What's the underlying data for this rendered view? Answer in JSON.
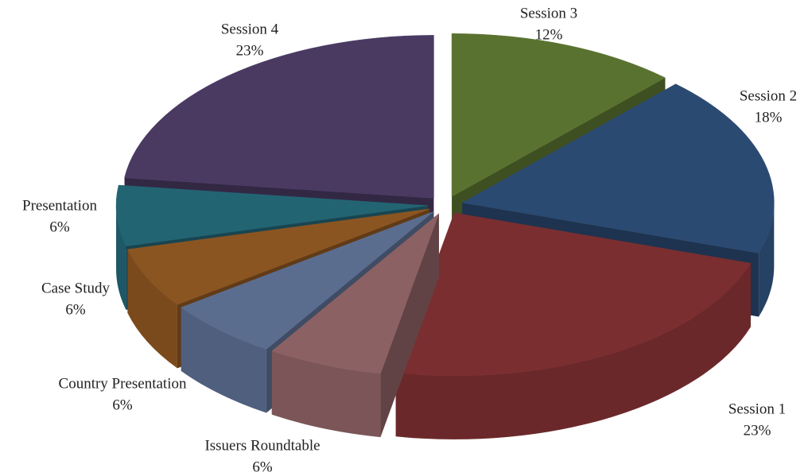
{
  "chart_data": {
    "type": "pie",
    "categories": [
      "Session 3",
      "Session 2",
      "Session 1",
      "Issuers Roundtable",
      "Country Presentation",
      "Case Study",
      "Presentation",
      "Session 4"
    ],
    "values": [
      12,
      18,
      23,
      6,
      6,
      6,
      6,
      23
    ],
    "value_labels": [
      "12%",
      "18%",
      "23%",
      "6%",
      "6%",
      "6%",
      "6%",
      "23%"
    ],
    "colors": [
      "#5a7230",
      "#2b4a72",
      "#7a2e30",
      "#8c6163",
      "#5b6d8f",
      "#8b5522",
      "#236473",
      "#4a3a62"
    ]
  }
}
